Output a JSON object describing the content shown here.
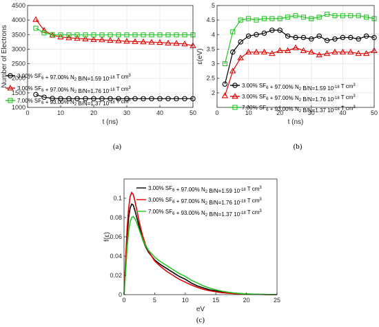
{
  "chart_data": [
    {
      "id": "a",
      "type": "line",
      "caption": "(a)",
      "title": "",
      "xlabel": "t (ns)",
      "ylabel": "Number of Electrons",
      "xlim": [
        0,
        50
      ],
      "ylim": [
        1000,
        4500
      ],
      "xticks": [
        "0",
        "10",
        "20",
        "30",
        "40",
        "50"
      ],
      "yticks": [
        "1000",
        "1500",
        "2000",
        "2500",
        "3000",
        "3500",
        "4000",
        "4500"
      ],
      "x": [
        2.5,
        5,
        7.5,
        10,
        12.5,
        15,
        17.5,
        20,
        22.5,
        25,
        27.5,
        30,
        32.5,
        35,
        37.5,
        40,
        42.5,
        45,
        47.5,
        50
      ],
      "legend_position": "left",
      "series": [
        {
          "name": "3.00% SF6 + 97.00% N2  B/N=1.59 10-18 T cm3",
          "color": "#000000",
          "marker": "circle",
          "values": [
            1440,
            1350,
            1310,
            1300,
            1300,
            1300,
            1300,
            1300,
            1300,
            1300,
            1300,
            1300,
            1300,
            1300,
            1300,
            1300,
            1300,
            1300,
            1300,
            1300
          ]
        },
        {
          "name": "3.00% SF6 + 97.00% N2  B/N=1.76 10-18 T cm3",
          "color": "#e00000",
          "marker": "triangle",
          "values": [
            4020,
            3650,
            3480,
            3420,
            3390,
            3370,
            3350,
            3330,
            3320,
            3300,
            3290,
            3270,
            3260,
            3250,
            3240,
            3230,
            3210,
            3200,
            3180,
            3120
          ]
        },
        {
          "name": "7.00% SF6 + 93.00% N2  B/N=1.37 10-18 T cm3",
          "color": "#22c422",
          "marker": "square",
          "values": [
            3720,
            3560,
            3500,
            3490,
            3490,
            3490,
            3490,
            3490,
            3490,
            3490,
            3490,
            3490,
            3490,
            3490,
            3490,
            3490,
            3490,
            3490,
            3490,
            3490
          ]
        }
      ]
    },
    {
      "id": "b",
      "type": "line",
      "caption": "(b)",
      "title": "",
      "xlabel": "t (ns)",
      "ylabel": "ε(eV)",
      "xlim": [
        0,
        50
      ],
      "ylim": [
        1.5,
        5
      ],
      "xticks": [
        "0",
        "10",
        "20",
        "30",
        "40",
        "50"
      ],
      "yticks": [
        "2",
        "2.5",
        "3",
        "3.5",
        "4",
        "4.5",
        "5"
      ],
      "x": [
        2.5,
        5,
        7.5,
        10,
        12.5,
        15,
        17.5,
        20,
        22.5,
        25,
        27.5,
        30,
        32.5,
        35,
        37.5,
        40,
        42.5,
        45,
        47.5,
        50
      ],
      "legend_position": "bottom-right",
      "series": [
        {
          "name": "3.00% SF6 + 97.00% N2  B/N=1.59 10-18 T cm3",
          "color": "#000000",
          "marker": "circle",
          "values": [
            2.3,
            3.4,
            3.75,
            3.95,
            4.0,
            4.05,
            4.15,
            4.15,
            3.95,
            3.9,
            3.9,
            3.85,
            3.95,
            3.8,
            3.85,
            3.9,
            3.9,
            3.85,
            3.95,
            3.9
          ]
        },
        {
          "name": "3.00% SF6 + 97.00% N2  B/N=1.76 10-18 T cm3",
          "color": "#e00000",
          "marker": "triangle",
          "values": [
            1.9,
            2.75,
            3.2,
            3.4,
            3.4,
            3.4,
            3.35,
            3.45,
            3.45,
            3.55,
            3.45,
            3.4,
            3.3,
            3.35,
            3.4,
            3.4,
            3.4,
            3.35,
            3.35,
            3.45
          ]
        },
        {
          "name": "7.00% SF6 + 93.00% N2  B/N=1.37 10-18 T cm3",
          "color": "#22c422",
          "marker": "square",
          "values": [
            3.0,
            4.1,
            4.5,
            4.55,
            4.5,
            4.55,
            4.55,
            4.55,
            4.6,
            4.65,
            4.6,
            4.55,
            4.6,
            4.7,
            4.65,
            4.65,
            4.65,
            4.65,
            4.6,
            4.55
          ]
        }
      ]
    },
    {
      "id": "c",
      "type": "line",
      "caption": "(c)",
      "title": "",
      "xlabel": "eV",
      "ylabel": "f(ε)",
      "xlim": [
        0,
        25
      ],
      "ylim": [
        0,
        0.12
      ],
      "xticks": [
        "0",
        "5",
        "10",
        "15",
        "20",
        "25"
      ],
      "yticks": [
        "0",
        "0.02",
        "0.04",
        "0.06",
        "0.08",
        "0.1"
      ],
      "x": [
        0,
        0.25,
        0.5,
        0.75,
        1,
        1.25,
        1.5,
        1.75,
        2,
        2.5,
        3,
        3.5,
        4,
        5,
        6,
        7,
        8,
        9,
        10,
        11,
        12,
        13,
        14,
        15,
        16,
        17,
        18,
        19,
        20,
        21,
        22,
        23,
        24,
        25
      ],
      "legend_position": "top-right",
      "series": [
        {
          "name": "3.00% SF6 + 97.00% N2  B/N=1.59 10-18 T cm3",
          "color": "#000000",
          "values": [
            0,
            0.03,
            0.06,
            0.08,
            0.09,
            0.094,
            0.093,
            0.088,
            0.082,
            0.07,
            0.058,
            0.05,
            0.044,
            0.036,
            0.031,
            0.027,
            0.023,
            0.019,
            0.016,
            0.012,
            0.009,
            0.007,
            0.005,
            0.004,
            0.003,
            0.002,
            0.0015,
            0.001,
            0.0007,
            0.0005,
            0.0003,
            0.0002,
            0.0001,
            0
          ]
        },
        {
          "name": "3.00% SF6 + 97.00% N2  B/N=1.76 10-18 T cm3",
          "color": "#e00000",
          "values": [
            0,
            0.035,
            0.068,
            0.09,
            0.102,
            0.106,
            0.104,
            0.098,
            0.09,
            0.075,
            0.062,
            0.052,
            0.045,
            0.035,
            0.029,
            0.024,
            0.02,
            0.016,
            0.013,
            0.01,
            0.0075,
            0.0055,
            0.004,
            0.003,
            0.002,
            0.0015,
            0.001,
            0.0007,
            0.0005,
            0.0003,
            0.0002,
            0.0001,
            5e-05,
            0
          ]
        },
        {
          "name": "7.00% SF6 + 93.00% N2  B/N=1.37 10-18 T cm3",
          "color": "#22c422",
          "values": [
            0,
            0.022,
            0.048,
            0.066,
            0.076,
            0.08,
            0.081,
            0.079,
            0.076,
            0.067,
            0.058,
            0.051,
            0.046,
            0.039,
            0.034,
            0.03,
            0.026,
            0.022,
            0.019,
            0.015,
            0.012,
            0.009,
            0.0068,
            0.005,
            0.0036,
            0.0026,
            0.0018,
            0.0012,
            0.0008,
            0.0005,
            0.0003,
            0.0002,
            0.0001,
            0
          ]
        }
      ]
    }
  ]
}
